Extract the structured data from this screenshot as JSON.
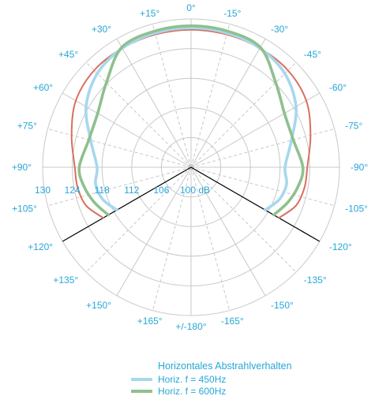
{
  "chart_data": {
    "type": "polar",
    "rlim": [
      100,
      130
    ],
    "ring_labels": [
      "130",
      "124",
      "118",
      "112",
      "106",
      "100 dB"
    ],
    "angle_labels": [
      {
        "angle": 0,
        "label": "0°"
      },
      {
        "angle": -15,
        "label": "-15°"
      },
      {
        "angle": -30,
        "label": "-30°"
      },
      {
        "angle": -45,
        "label": "-45°"
      },
      {
        "angle": -60,
        "label": "-60°"
      },
      {
        "angle": -75,
        "label": "-75°"
      },
      {
        "angle": -90,
        "label": "-90°"
      },
      {
        "angle": -105,
        "label": "-105°"
      },
      {
        "angle": -120,
        "label": "-120°"
      },
      {
        "angle": -135,
        "label": "-135°"
      },
      {
        "angle": -150,
        "label": "-150°"
      },
      {
        "angle": -165,
        "label": "-165°"
      },
      {
        "angle": 180,
        "label": "+/-180°"
      },
      {
        "angle": 165,
        "label": "+165°"
      },
      {
        "angle": 150,
        "label": "+150°"
      },
      {
        "angle": 135,
        "label": "+135°"
      },
      {
        "angle": 120,
        "label": "+120°"
      },
      {
        "angle": 105,
        "label": "+105°"
      },
      {
        "angle": 90,
        "label": "+90°"
      },
      {
        "angle": 75,
        "label": "+75°"
      },
      {
        "angle": 60,
        "label": "+60°"
      },
      {
        "angle": 45,
        "label": "+45°"
      },
      {
        "angle": 30,
        "label": "+30°"
      },
      {
        "angle": 15,
        "label": "+15°"
      }
    ],
    "coverage_angles": [
      120,
      -120
    ],
    "angles": [
      0,
      15,
      30,
      45,
      60,
      75,
      90,
      100,
      110,
      120
    ],
    "series": [
      {
        "name": "Horiz. f = 450Hz",
        "color": "#a6d8ee",
        "values": [
          128.2,
          128.1,
          127.8,
          126.8,
          124.5,
          121.0,
          119.0,
          119.6,
          119.0,
          117.3
        ]
      },
      {
        "name": "Horiz. f = 600Hz",
        "color": "#8fc08e",
        "values": [
          128.6,
          128.5,
          128.0,
          124.2,
          121.8,
          121.4,
          122.6,
          122.0,
          120.8,
          119.3
        ]
      },
      {
        "name": "",
        "color": "#d96f5e",
        "values": [
          127.8,
          127.8,
          127.8,
          127.7,
          126.9,
          125.0,
          123.5,
          123.3,
          122.6,
          120.5
        ]
      }
    ],
    "legend_title": "Horizontales Abstrahlverhalten",
    "legend_position": "bottom"
  },
  "colors": {
    "grid": "#c8c8c8",
    "label": "#27a7d8",
    "coverage_line": "#000000"
  }
}
